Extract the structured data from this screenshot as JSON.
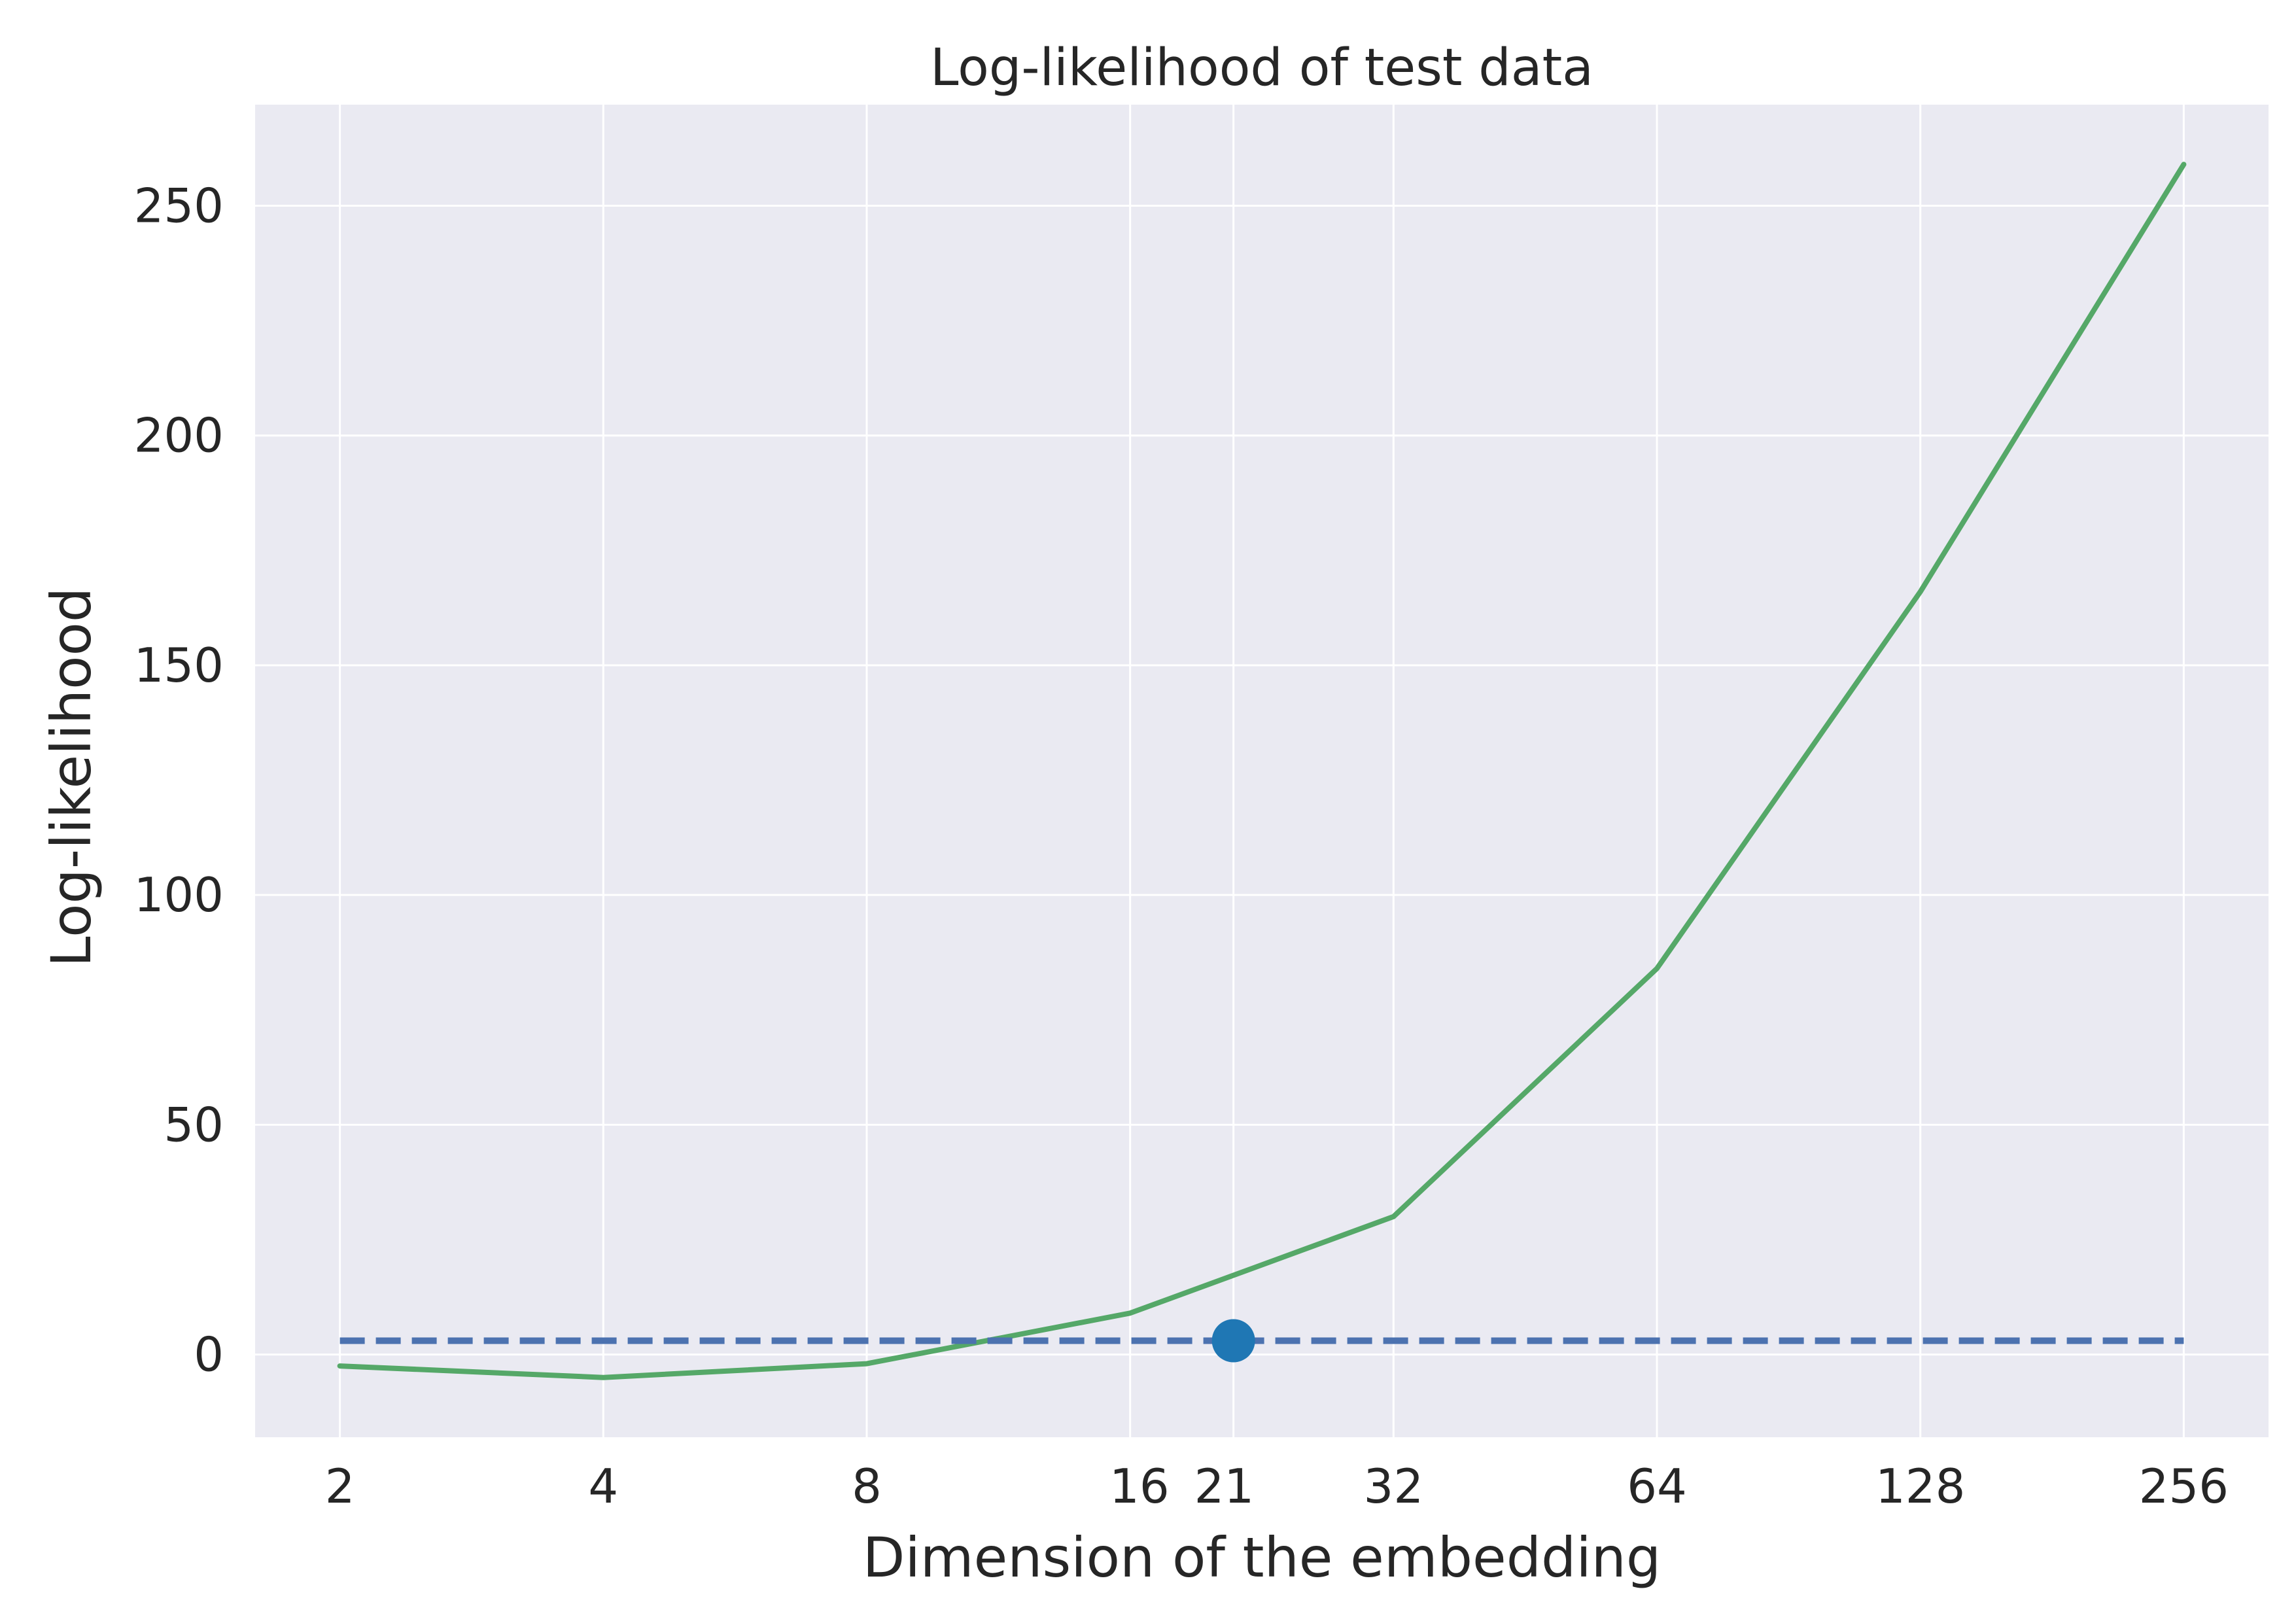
{
  "chart_data": {
    "type": "line",
    "title": "Log-likelihood of test data",
    "xlabel": "Dimension of the embedding",
    "ylabel": "Log-likelihood",
    "xscale": "log2",
    "xlim": [
      1.6,
      320
    ],
    "ylim": [
      -18,
      272
    ],
    "grid": true,
    "background": "#EAEAF2",
    "x_tick_labels": [
      "2",
      "4",
      "8",
      "16",
      "21",
      "32",
      "64",
      "128",
      "256"
    ],
    "y_tick_labels": [
      "0",
      "50",
      "100",
      "150",
      "200",
      "250"
    ],
    "series": [
      {
        "style": "solid",
        "color": "#55A868",
        "x": [
          2,
          4,
          8,
          16,
          32,
          64,
          128,
          256
        ],
        "y": [
          -2.5,
          -5,
          -2,
          9,
          30,
          84,
          166,
          259
        ]
      },
      {
        "style": "dashed",
        "color": "#4C72B0",
        "x": [
          2,
          256
        ],
        "y": [
          3,
          3
        ]
      }
    ],
    "markers": [
      {
        "x": 21,
        "y": 3,
        "color": "#1F77B4"
      }
    ]
  }
}
